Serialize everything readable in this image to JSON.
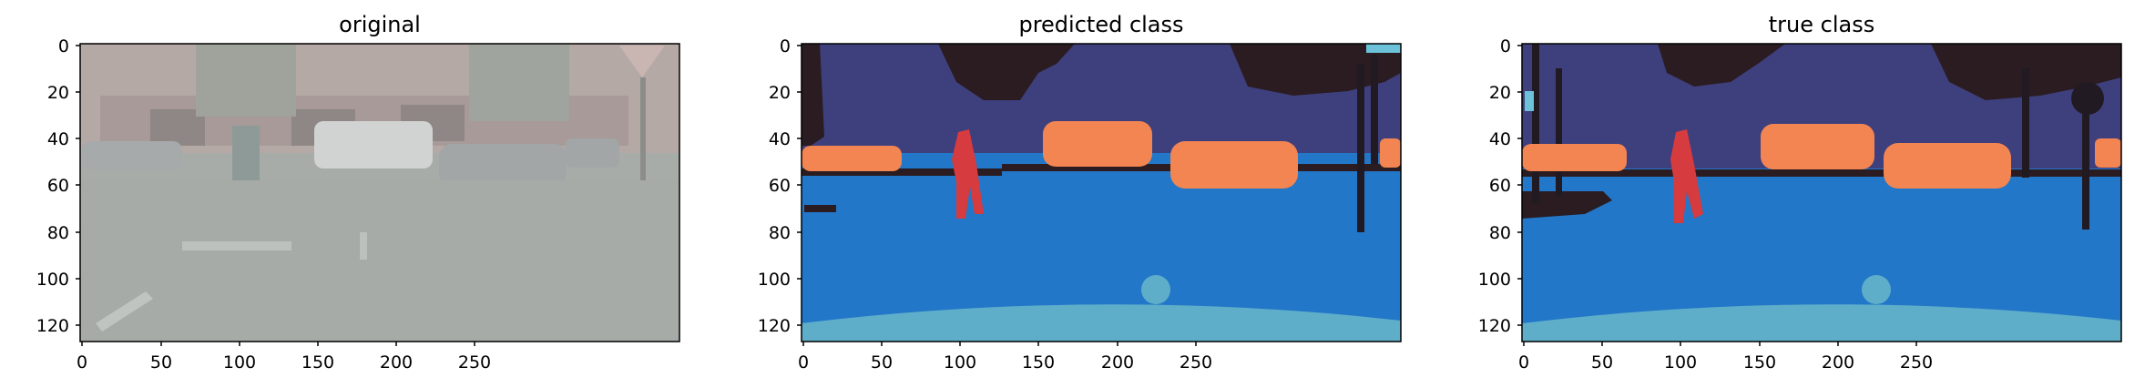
{
  "figure": {
    "panels": [
      {
        "title": "original",
        "x_ticks": [
          "0",
          "50",
          "100",
          "150",
          "200",
          "250"
        ],
        "y_ticks": [
          "0",
          "20",
          "40",
          "60",
          "80",
          "100",
          "120"
        ]
      },
      {
        "title": "predicted class",
        "x_ticks": [
          "0",
          "50",
          "100",
          "150",
          "200",
          "250"
        ],
        "y_ticks": [
          "0",
          "20",
          "40",
          "60",
          "80",
          "100",
          "120"
        ]
      },
      {
        "title": "true class",
        "x_ticks": [
          "0",
          "50",
          "100",
          "150",
          "200",
          "250"
        ],
        "y_ticks": [
          "0",
          "20",
          "40",
          "60",
          "80",
          "100",
          "120"
        ]
      }
    ]
  },
  "colors": {
    "road": "#2277C8",
    "sidewalk_lower": "#5FAEC9",
    "building": "#3E3F7D",
    "vegetation": "#2A1C21",
    "car": "#F28551",
    "person": "#D63B3F",
    "pole": "#221A22",
    "sky": "#6BC2D9",
    "photo_road": "#A9ADA8",
    "photo_buildings": "#B8A7A3",
    "photo_sidewalk": "#B4B8B4"
  }
}
